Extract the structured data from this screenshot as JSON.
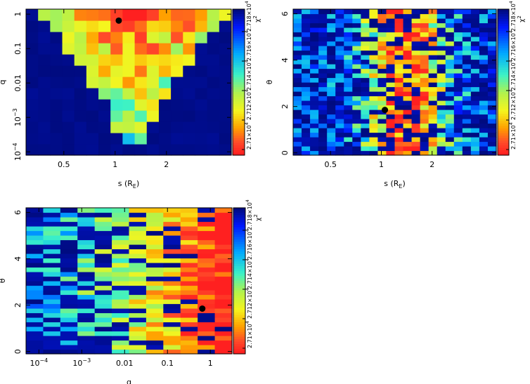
{
  "chart_data": [
    {
      "type": "heatmap",
      "name": "panel-s-q",
      "xlabel": "s (R",
      "xlabel_sub": "E",
      "xlabel_close": ")",
      "ylabel": "q",
      "x_scale": "log",
      "y_scale": "log",
      "xlim": [
        0.3,
        4.8
      ],
      "ylim": [
        8e-05,
        1.4
      ],
      "x_ticks": [
        {
          "value": 0.5,
          "label": "0.5"
        },
        {
          "value": 1,
          "label": "1"
        },
        {
          "value": 2,
          "label": "2"
        }
      ],
      "y_ticks": [
        {
          "value": 1,
          "label": "1",
          "sup": ""
        },
        {
          "value": 0.1,
          "label": "0.1",
          "sup": ""
        },
        {
          "value": 0.01,
          "label": "0.01",
          "sup": ""
        },
        {
          "value": 0.001,
          "label": "10",
          "sup": "−3"
        },
        {
          "value": 0.0001,
          "label": "10",
          "sup": "−4"
        }
      ],
      "nx": 17,
      "ny": 13,
      "grid_seed": 11,
      "best_fit": {
        "x": 1.05,
        "y": 0.65
      },
      "colorbar": {
        "label": "χ",
        "label_sup": "2",
        "ticks": [
          "2.71×10",
          "2.712×10",
          "2.714×10",
          "2.716×10",
          "2.718×10"
        ],
        "exponent": "4"
      }
    },
    {
      "type": "heatmap",
      "name": "panel-s-theta",
      "xlabel": "s (R",
      "xlabel_sub": "E",
      "xlabel_close": ")",
      "ylabel": "θ",
      "x_scale": "log",
      "y_scale": "linear",
      "xlim": [
        0.3,
        4.8
      ],
      "ylim": [
        -0.1,
        6.2
      ],
      "x_ticks": [
        {
          "value": 0.5,
          "label": "0.5"
        },
        {
          "value": 1,
          "label": "1"
        },
        {
          "value": 2,
          "label": "2"
        }
      ],
      "y_ticks": [
        {
          "value": 0,
          "label": "0",
          "sup": ""
        },
        {
          "value": 2,
          "label": "2",
          "sup": ""
        },
        {
          "value": 4,
          "label": "4",
          "sup": ""
        },
        {
          "value": 6,
          "label": "6",
          "sup": ""
        }
      ],
      "nx": 24,
      "ny": 32,
      "grid_seed": 23,
      "best_fit": {
        "x": 1.05,
        "y": 1.85
      },
      "colorbar": {
        "label": "χ",
        "label_sup": "2",
        "ticks": [
          "2.71×10",
          "2.712×10",
          "2.714×10",
          "2.716×10",
          "2.718×10"
        ],
        "exponent": "4"
      }
    },
    {
      "type": "heatmap",
      "name": "panel-q-theta",
      "xlabel": "q",
      "xlabel_sub": "",
      "xlabel_close": "",
      "ylabel": "θ",
      "x_scale": "log",
      "y_scale": "linear",
      "xlim": [
        5e-05,
        3.2
      ],
      "ylim": [
        -0.1,
        6.2
      ],
      "x_ticks": [
        {
          "value": 0.0001,
          "label": "10",
          "sup": "−4"
        },
        {
          "value": 0.001,
          "label": "10",
          "sup": "−3"
        },
        {
          "value": 0.01,
          "label": "0.01",
          "sup": ""
        },
        {
          "value": 0.1,
          "label": "0.1",
          "sup": ""
        },
        {
          "value": 1,
          "label": "1",
          "sup": ""
        }
      ],
      "y_ticks": [
        {
          "value": 0,
          "label": "0",
          "sup": ""
        },
        {
          "value": 2,
          "label": "2",
          "sup": ""
        },
        {
          "value": 4,
          "label": "4",
          "sup": ""
        },
        {
          "value": 6,
          "label": "6",
          "sup": ""
        }
      ],
      "nx": 12,
      "ny": 32,
      "grid_seed": 37,
      "best_fit": {
        "x": 0.65,
        "y": 1.85
      },
      "colorbar": {
        "label": "χ",
        "label_sup": "2",
        "ticks": [
          "2.71×10",
          "2.712×10",
          "2.714×10",
          "2.716×10",
          "2.718×10"
        ],
        "exponent": "4"
      }
    }
  ]
}
